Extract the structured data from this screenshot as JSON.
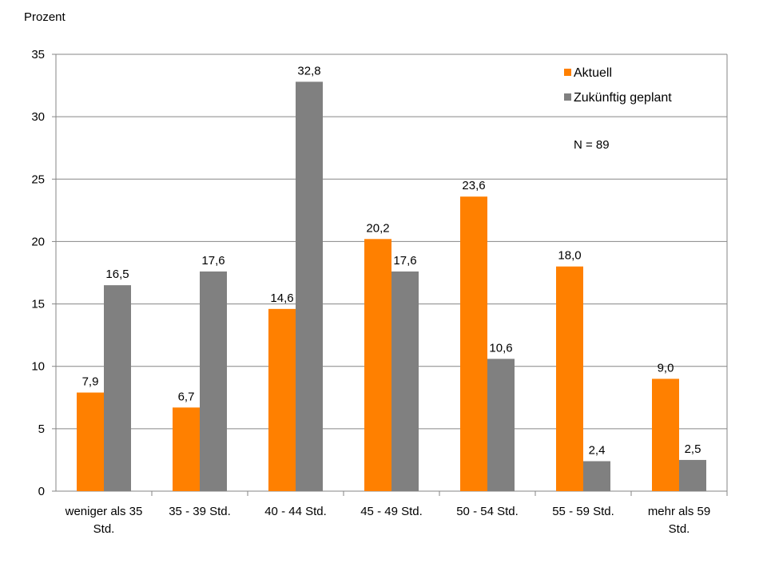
{
  "chart_data": {
    "type": "bar",
    "ylabel": "Prozent",
    "xlabel": "",
    "ylim": [
      0,
      35
    ],
    "yticks": [
      0,
      5,
      10,
      15,
      20,
      25,
      30,
      35
    ],
    "grid": true,
    "legend_position": "top-right",
    "annotation": "N = 89",
    "categories": [
      [
        "weniger als 35",
        "Std."
      ],
      [
        "35 - 39 Std."
      ],
      [
        "40 - 44 Std."
      ],
      [
        "45 - 49 Std."
      ],
      [
        "50 - 54 Std."
      ],
      [
        "55 - 59 Std."
      ],
      [
        "mehr als 59",
        "Std."
      ]
    ],
    "series": [
      {
        "name": "Aktuell",
        "color": "#FF8000",
        "values": [
          7.9,
          6.7,
          14.6,
          20.2,
          23.6,
          18.0,
          9.0
        ],
        "labels": [
          "7,9",
          "6,7",
          "14,6",
          "20,2",
          "23,6",
          "18,0",
          "9,0"
        ]
      },
      {
        "name": "Zukünftig geplant",
        "color": "#808080",
        "values": [
          16.5,
          17.6,
          32.8,
          17.6,
          10.6,
          2.4,
          2.5
        ],
        "labels": [
          "16,5",
          "17,6",
          "32,8",
          "17,6",
          "10,6",
          "2,4",
          "2,5"
        ]
      }
    ]
  }
}
